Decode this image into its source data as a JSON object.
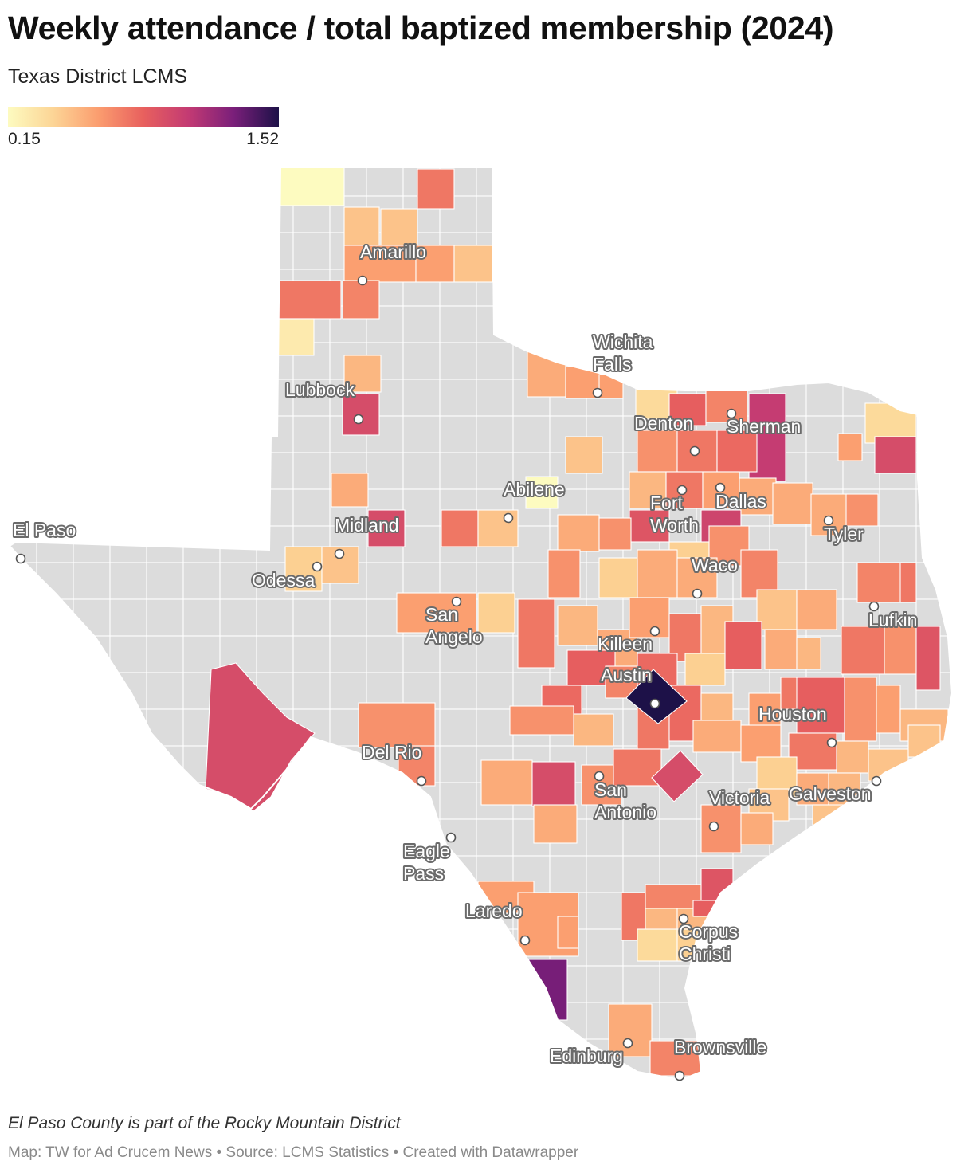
{
  "title": "Weekly attendance / total baptized membership (2024)",
  "subtitle": "Texas District LCMS",
  "legend": {
    "min_label": "0.15",
    "max_label": "1.52",
    "min": 0.15,
    "max": 1.52,
    "colors": [
      "#fdfbc0",
      "#fcd596",
      "#fb9d6f",
      "#e8605e",
      "#c33a73",
      "#7a1f7a",
      "#1d1148"
    ]
  },
  "colors": {
    "no_data": "#dcdcdc",
    "border": "#ffffff",
    "label_text": "#ffffff",
    "label_halo": "#6b6b6b"
  },
  "map_data": {
    "cities": [
      {
        "name_lines": [
          "Amarillo"
        ]
      },
      {
        "name_lines": [
          "Wichita",
          "Falls"
        ]
      },
      {
        "name_lines": [
          "Lubbock"
        ]
      },
      {
        "name_lines": [
          "Denton"
        ]
      },
      {
        "name_lines": [
          "Sherman"
        ]
      },
      {
        "name_lines": [
          "Abilene"
        ]
      },
      {
        "name_lines": [
          "Fort",
          "Worth"
        ]
      },
      {
        "name_lines": [
          "Dallas"
        ]
      },
      {
        "name_lines": [
          "El Paso"
        ]
      },
      {
        "name_lines": [
          "Midland"
        ]
      },
      {
        "name_lines": [
          "Tyler"
        ]
      },
      {
        "name_lines": [
          "Odessa"
        ]
      },
      {
        "name_lines": [
          "Waco"
        ]
      },
      {
        "name_lines": [
          "San",
          "Angelo"
        ]
      },
      {
        "name_lines": [
          "Lufkin"
        ]
      },
      {
        "name_lines": [
          "Killeen"
        ]
      },
      {
        "name_lines": [
          "Austin"
        ]
      },
      {
        "name_lines": [
          "Houston"
        ]
      },
      {
        "name_lines": [
          "Del Rio"
        ]
      },
      {
        "name_lines": [
          "San",
          "Antonio"
        ]
      },
      {
        "name_lines": [
          "Victoria"
        ]
      },
      {
        "name_lines": [
          "Galveston"
        ]
      },
      {
        "name_lines": [
          "Eagle",
          "Pass"
        ]
      },
      {
        "name_lines": [
          "Laredo"
        ]
      },
      {
        "name_lines": [
          "Corpus",
          "Christi"
        ]
      },
      {
        "name_lines": [
          "Edinburg"
        ]
      },
      {
        "name_lines": [
          "Brownsville"
        ]
      }
    ]
  },
  "note": "El Paso County is part of the Rocky Mountain District",
  "credit": "Map: TW for Ad Crucem News • Source: LCMS Statistics • Created with Datawrapper"
}
